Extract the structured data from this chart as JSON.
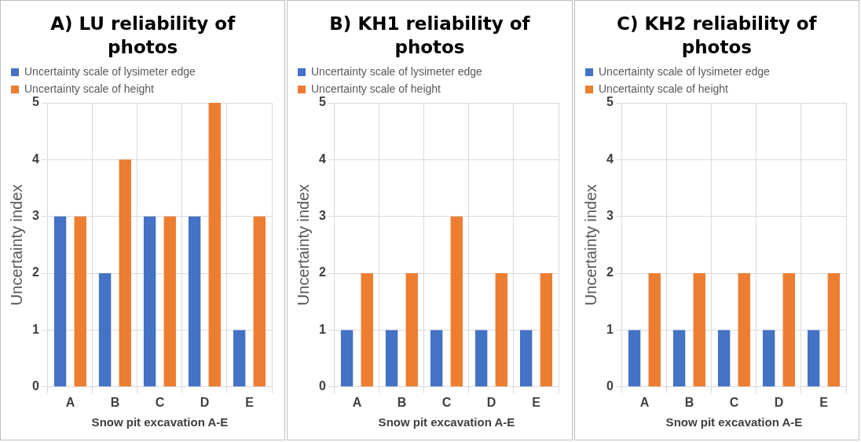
{
  "chart_data": [
    {
      "type": "bar",
      "title": "A) LU reliability of photos",
      "xlabel": "Snow pit excavation A-E",
      "ylabel": "Uncertainty index",
      "categories": [
        "A",
        "B",
        "C",
        "D",
        "E"
      ],
      "series": [
        {
          "name": "Uncertainty scale of lysimeter edge",
          "color": "#4472c4",
          "values": [
            3,
            2,
            3,
            3,
            1
          ]
        },
        {
          "name": "Uncertainty scale of height",
          "color": "#ed7d31",
          "values": [
            3,
            4,
            3,
            5,
            3
          ]
        }
      ],
      "ylim": [
        0,
        5
      ],
      "yticks": [
        0,
        1,
        2,
        3,
        4,
        5
      ],
      "grid": true,
      "legend": "top"
    },
    {
      "type": "bar",
      "title": "B) KH1 reliability of photos",
      "xlabel": "Snow pit excavation A-E",
      "ylabel": "Uncertainty index",
      "categories": [
        "A",
        "B",
        "C",
        "D",
        "E"
      ],
      "series": [
        {
          "name": "Uncertainty scale of lysimeter edge",
          "color": "#4472c4",
          "values": [
            1,
            1,
            1,
            1,
            1
          ]
        },
        {
          "name": "Uncertainty scale of height",
          "color": "#ed7d31",
          "values": [
            2,
            2,
            3,
            2,
            2
          ]
        }
      ],
      "ylim": [
        0,
        5
      ],
      "yticks": [
        0,
        1,
        2,
        3,
        4,
        5
      ],
      "grid": true,
      "legend": "top"
    },
    {
      "type": "bar",
      "title": "C) KH2 reliability of photos",
      "xlabel": "Snow pit excavation A-E",
      "ylabel": "Uncertainty index",
      "categories": [
        "A",
        "B",
        "C",
        "D",
        "E"
      ],
      "series": [
        {
          "name": "Uncertainty scale of lysimeter edge",
          "color": "#4472c4",
          "values": [
            1,
            1,
            1,
            1,
            1
          ]
        },
        {
          "name": "Uncertainty scale of height",
          "color": "#ed7d31",
          "values": [
            2,
            2,
            2,
            2,
            2
          ]
        }
      ],
      "ylim": [
        0,
        5
      ],
      "yticks": [
        0,
        1,
        2,
        3,
        4,
        5
      ],
      "grid": true,
      "legend": "top"
    }
  ]
}
